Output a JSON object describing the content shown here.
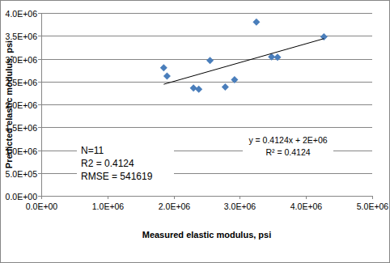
{
  "chart_data": {
    "type": "scatter",
    "x_label": "Measured elastic modulus, psi",
    "y_label": "Predicted elastic modulus, psi",
    "xlim": [
      0,
      5000000
    ],
    "ylim": [
      0,
      4000000
    ],
    "xticks": [
      {
        "value": 0,
        "label": "0.0E+00"
      },
      {
        "value": 1000000,
        "label": "1.0E+06"
      },
      {
        "value": 2000000,
        "label": "2.0E+06"
      },
      {
        "value": 3000000,
        "label": "3.0E+06"
      },
      {
        "value": 4000000,
        "label": "4.0E+06"
      },
      {
        "value": 5000000,
        "label": "5.0E+06"
      }
    ],
    "yticks": [
      {
        "value": 0,
        "label": "0.0E+00"
      },
      {
        "value": 500000,
        "label": "5.0E+05"
      },
      {
        "value": 1000000,
        "label": "1.0E+06"
      },
      {
        "value": 1500000,
        "label": "1.5E+06"
      },
      {
        "value": 2000000,
        "label": "2.0E+06"
      },
      {
        "value": 2500000,
        "label": "2.5E+06"
      },
      {
        "value": 3000000,
        "label": "3.0E+06"
      },
      {
        "value": 3500000,
        "label": "3.5E+06"
      },
      {
        "value": 4000000,
        "label": "4.0E+06"
      }
    ],
    "grid": true,
    "series": [
      {
        "type": "scatter",
        "color": "#4a7ebb",
        "marker": "diamond",
        "x": [
          1850000,
          1900000,
          2300000,
          2380000,
          2550000,
          2780000,
          2920000,
          3250000,
          3480000,
          3570000,
          4270000
        ],
        "values": [
          2800000,
          2620000,
          2360000,
          2330000,
          2960000,
          2380000,
          2540000,
          3800000,
          3040000,
          3030000,
          3480000
        ]
      },
      {
        "type": "line",
        "color": "#000000",
        "line_style": "solid",
        "x": [
          1850000,
          4270000
        ],
        "values": [
          2440000,
          3438000
        ]
      }
    ],
    "annotations": [
      "N=11",
      "R2 = 0.4124",
      "RMSE = 541619",
      "y = 0.4124x + 2E+06",
      "R² = 0.4124"
    ]
  }
}
